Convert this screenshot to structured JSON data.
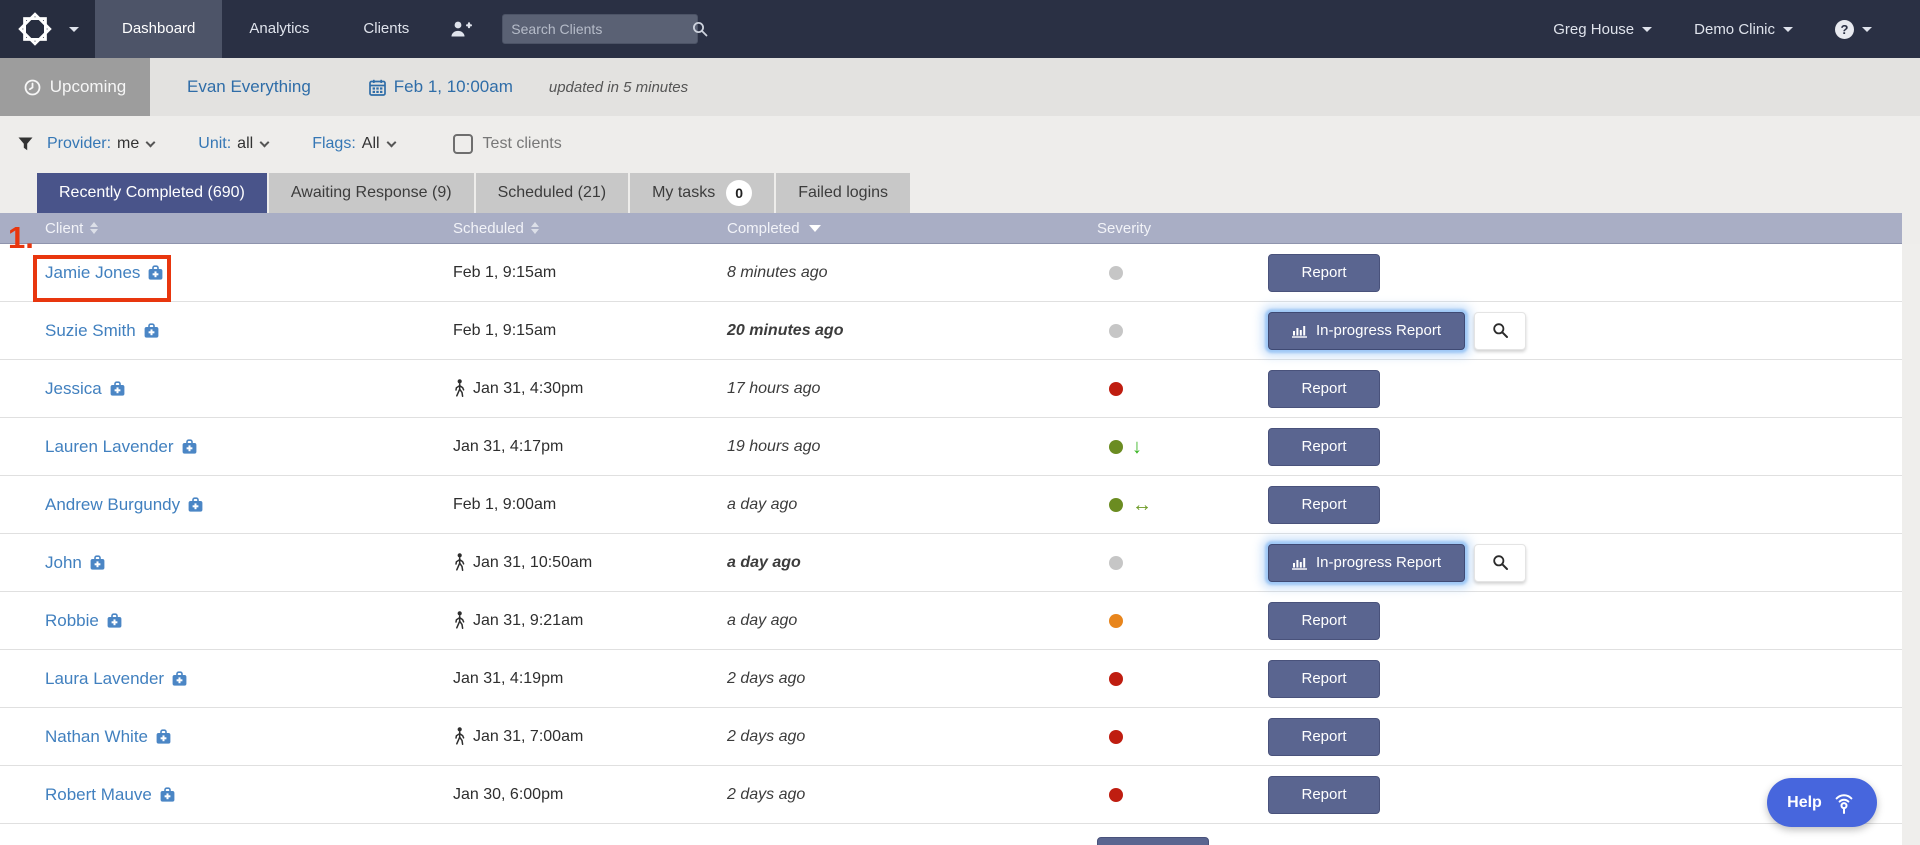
{
  "nav": {
    "tabs": [
      {
        "label": "Dashboard",
        "active": true
      },
      {
        "label": "Analytics",
        "active": false
      },
      {
        "label": "Clients",
        "active": false
      }
    ],
    "search_placeholder": "Search Clients",
    "user_menu": "Greg House",
    "clinic_menu": "Demo Clinic",
    "help_glyph": "?"
  },
  "subheader": {
    "upcoming_label": "Upcoming",
    "provider_name": "Evan Everything",
    "appointment_time": "Feb 1, 10:00am",
    "updated_text": "updated in 5 minutes"
  },
  "filters": {
    "provider_label": "Provider:",
    "provider_value": "me",
    "unit_label": "Unit:",
    "unit_value": "all",
    "flags_label": "Flags:",
    "flags_value": "All",
    "test_clients_label": "Test clients",
    "test_clients_checked": false
  },
  "tabs": [
    {
      "label": "Recently Completed (690)",
      "active": true
    },
    {
      "label": "Awaiting Response (9)",
      "active": false
    },
    {
      "label": "Scheduled (21)",
      "active": false
    },
    {
      "label": "My tasks",
      "badge": "0",
      "active": false
    },
    {
      "label": "Failed logins",
      "active": false
    }
  ],
  "table": {
    "columns": [
      {
        "label": "Client",
        "sort": "both"
      },
      {
        "label": "Scheduled",
        "sort": "both"
      },
      {
        "label": "Completed",
        "sort": "down"
      },
      {
        "label": "Severity",
        "sort": null
      }
    ],
    "actions": {
      "report_label": "Report",
      "in_progress_label": "In-progress Report"
    },
    "severity_colors": {
      "gray": "#c6c6c6",
      "red": "#bf1d10",
      "green": "#6b8c21",
      "orange": "#e8851c"
    },
    "trend_glyphs": {
      "down": "↓",
      "flat": "↔"
    },
    "trend_colors": {
      "down": "#35b31f",
      "flat": "#6d9b26"
    },
    "rows": [
      {
        "client": "Jamie Jones",
        "scheduled": "Feb 1, 9:15am",
        "walk_in": false,
        "completed": "8 minutes ago",
        "unread": false,
        "severity": "gray",
        "trend": null,
        "action": "report",
        "annotated": true
      },
      {
        "client": "Suzie Smith",
        "scheduled": "Feb 1, 9:15am",
        "walk_in": false,
        "completed": "20 minutes ago",
        "unread": true,
        "severity": "gray",
        "trend": null,
        "action": "in_progress",
        "annotated": false
      },
      {
        "client": "Jessica",
        "scheduled": "Jan 31, 4:30pm",
        "walk_in": true,
        "completed": "17 hours ago",
        "unread": false,
        "severity": "red",
        "trend": null,
        "action": "report",
        "annotated": false
      },
      {
        "client": "Lauren Lavender",
        "scheduled": "Jan 31, 4:17pm",
        "walk_in": false,
        "completed": "19 hours ago",
        "unread": false,
        "severity": "green",
        "trend": "down",
        "action": "report",
        "annotated": false
      },
      {
        "client": "Andrew Burgundy",
        "scheduled": "Feb 1, 9:00am",
        "walk_in": false,
        "completed": "a day ago",
        "unread": false,
        "severity": "green",
        "trend": "flat",
        "action": "report",
        "annotated": false
      },
      {
        "client": "John",
        "scheduled": "Jan 31, 10:50am",
        "walk_in": true,
        "completed": "a day ago",
        "unread": true,
        "severity": "gray",
        "trend": null,
        "action": "in_progress",
        "annotated": false
      },
      {
        "client": "Robbie",
        "scheduled": "Jan 31, 9:21am",
        "walk_in": true,
        "completed": "a day ago",
        "unread": false,
        "severity": "orange",
        "trend": null,
        "action": "report",
        "annotated": false
      },
      {
        "client": "Laura Lavender",
        "scheduled": "Jan 31, 4:19pm",
        "walk_in": false,
        "completed": "2 days ago",
        "unread": false,
        "severity": "red",
        "trend": null,
        "action": "report",
        "annotated": false
      },
      {
        "client": "Nathan White",
        "scheduled": "Jan 31, 7:00am",
        "walk_in": true,
        "completed": "2 days ago",
        "unread": false,
        "severity": "red",
        "trend": null,
        "action": "report",
        "annotated": false
      },
      {
        "client": "Robert Mauve",
        "scheduled": "Jan 30, 6:00pm",
        "walk_in": false,
        "completed": "2 days ago",
        "unread": false,
        "severity": "red",
        "trend": null,
        "action": "report",
        "annotated": false
      },
      {
        "partial": true,
        "action": "report"
      }
    ]
  },
  "annotation": {
    "number": "1.",
    "color": "#e8360e"
  },
  "help": {
    "label": "Help"
  },
  "icons": {
    "logo": "eight-point-star",
    "search": "magnifier",
    "add_client": "person-plus",
    "upcoming": "clock",
    "date": "calendar",
    "filter": "funnel",
    "client": "medical-bag",
    "walk_in": "walking-person",
    "in_progress_report": "bar-chart",
    "report_preview": "magnifier",
    "help_fab": "beacon",
    "help_menu": "question-circle"
  },
  "colors": {
    "nav_bg": "#2a3044",
    "nav_active_bg": "#4d5468",
    "tab_active_bg": "#49548a",
    "table_header_bg": "#a9aec5",
    "link_blue": "#3577b5",
    "client_blue": "#4180bf",
    "button_bg": "#5a6590",
    "help_bg": "#4766dd",
    "annotation_red": "#e8360e"
  }
}
